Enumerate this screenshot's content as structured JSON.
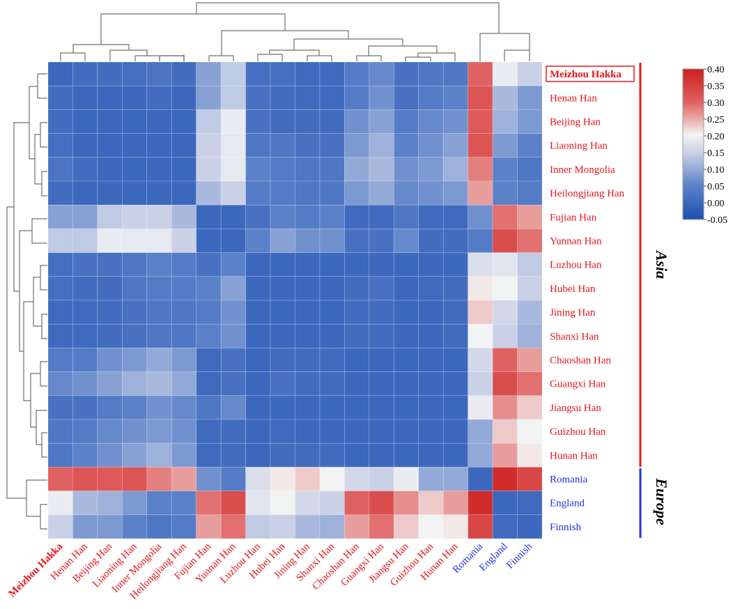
{
  "chart_data": {
    "type": "heatmap",
    "title": "",
    "colors": {
      "asia": "#e8161c",
      "europe": "#2233dd",
      "low": "#1d4fb1",
      "mid": "#f4f4f4",
      "high": "#cc1f1f"
    },
    "row_labels": [
      "Meizhou Hakka",
      "Henan Han",
      "Beijing Han",
      "Liaoning Han",
      "Inner Mongolia",
      "Heilongjiang Han",
      "Fujian Han",
      "Yunnan Han",
      "Luzhou Han",
      "Hubei Han",
      "Jining Han",
      "Shanxi Han",
      "Chaoshan Han",
      "Guangxi Han",
      "Jiangsu Han",
      "Guizhou Han",
      "Hunan Han",
      "Romania",
      "England",
      "Finnish"
    ],
    "col_labels": [
      "Meizhou Hakka",
      "Henan Han",
      "Beijing Han",
      "Liaoning Han",
      "Inner Mongolia",
      "Heilongjiang Han",
      "Fujian Han",
      "Yunnan Han",
      "Luzhou Han",
      "Hubei Han",
      "Jining Han",
      "Shanxi Han",
      "Chaoshan Han",
      "Guangxi Han",
      "Jiangsu Han",
      "Guizhou Han",
      "Hunan Han",
      "Romania",
      "England",
      "Finnish"
    ],
    "label_groups": [
      "Asia",
      "Asia",
      "Asia",
      "Asia",
      "Asia",
      "Asia",
      "Asia",
      "Asia",
      "Asia",
      "Asia",
      "Asia",
      "Asia",
      "Asia",
      "Asia",
      "Asia",
      "Asia",
      "Asia",
      "Europe",
      "Europe",
      "Europe"
    ],
    "highlight_label": "Meizhou Hakka",
    "groups": [
      {
        "name": "Asia",
        "start": 0,
        "end": 16
      },
      {
        "name": "Europe",
        "start": 17,
        "end": 19
      }
    ],
    "colorbar": {
      "min": -0.05,
      "max": 0.4,
      "ticks": [
        "0.40",
        "0.35",
        "0.30",
        "0.25",
        "0.20",
        "0.15",
        "0.10",
        "0.05",
        "0.00",
        "-0.05"
      ]
    },
    "values": [
      [
        0.0,
        0.01,
        0.01,
        0.015,
        0.025,
        0.01,
        0.09,
        0.14,
        0.015,
        0.015,
        0.005,
        0.005,
        0.04,
        0.06,
        0.02,
        0.03,
        0.03,
        0.3,
        0.19,
        0.15
      ],
      [
        0.01,
        0.0,
        0.0,
        0.0,
        0.01,
        0.0,
        0.09,
        0.14,
        0.02,
        0.01,
        0.005,
        0.005,
        0.04,
        0.07,
        0.02,
        0.04,
        0.05,
        0.32,
        0.12,
        0.08
      ],
      [
        0.01,
        0.0,
        0.0,
        0.0,
        0.0,
        0.0,
        0.14,
        0.19,
        0.02,
        0.01,
        0.01,
        0.01,
        0.07,
        0.09,
        0.04,
        0.06,
        0.07,
        0.31,
        0.11,
        0.08
      ],
      [
        0.015,
        0.0,
        0.0,
        0.0,
        0.0,
        0.0,
        0.15,
        0.185,
        0.03,
        0.03,
        0.02,
        0.02,
        0.08,
        0.11,
        0.05,
        0.07,
        0.09,
        0.32,
        0.08,
        0.05
      ],
      [
        0.025,
        0.01,
        0.0,
        0.0,
        0.0,
        0.0,
        0.15,
        0.185,
        0.05,
        0.04,
        0.03,
        0.03,
        0.1,
        0.12,
        0.07,
        0.08,
        0.11,
        0.28,
        0.05,
        0.03
      ],
      [
        0.01,
        0.0,
        0.0,
        0.0,
        0.0,
        0.0,
        0.12,
        0.15,
        0.04,
        0.04,
        0.03,
        0.03,
        0.08,
        0.1,
        0.06,
        0.07,
        0.08,
        0.26,
        0.05,
        0.04
      ],
      [
        0.09,
        0.09,
        0.14,
        0.15,
        0.15,
        0.12,
        0.0,
        0.0,
        0.02,
        0.05,
        0.04,
        0.05,
        0.005,
        0.005,
        0.03,
        0.005,
        0.005,
        0.07,
        0.29,
        0.26
      ],
      [
        0.14,
        0.14,
        0.19,
        0.185,
        0.185,
        0.15,
        0.0,
        0.0,
        0.05,
        0.09,
        0.07,
        0.07,
        0.02,
        0.02,
        0.06,
        0.01,
        0.01,
        0.04,
        0.33,
        0.29
      ],
      [
        0.015,
        0.02,
        0.02,
        0.03,
        0.05,
        0.04,
        0.02,
        0.05,
        0.0,
        0.0,
        0.0,
        0.0,
        0.0,
        0.0,
        0.0,
        0.0,
        0.0,
        0.17,
        0.18,
        0.14
      ],
      [
        0.015,
        0.01,
        0.01,
        0.03,
        0.04,
        0.04,
        0.05,
        0.09,
        0.0,
        0.0,
        0.0,
        0.0,
        0.01,
        0.02,
        0.0,
        0.005,
        0.01,
        0.21,
        0.2,
        0.15
      ],
      [
        0.005,
        0.005,
        0.01,
        0.02,
        0.03,
        0.03,
        0.04,
        0.07,
        0.0,
        0.0,
        0.0,
        0.0,
        0.01,
        0.01,
        0.0,
        0.0,
        0.01,
        0.23,
        0.16,
        0.12
      ],
      [
        0.005,
        0.005,
        0.01,
        0.02,
        0.03,
        0.03,
        0.05,
        0.07,
        0.0,
        0.0,
        0.0,
        0.0,
        0.01,
        0.01,
        0.0,
        0.0,
        0.01,
        0.2,
        0.15,
        0.11
      ],
      [
        0.04,
        0.04,
        0.07,
        0.08,
        0.1,
        0.08,
        0.005,
        0.02,
        0.0,
        0.01,
        0.01,
        0.01,
        0.0,
        0.0,
        0.0,
        0.0,
        0.0,
        0.16,
        0.3,
        0.26
      ],
      [
        0.06,
        0.07,
        0.09,
        0.11,
        0.12,
        0.1,
        0.005,
        0.02,
        0.0,
        0.02,
        0.01,
        0.01,
        0.0,
        0.0,
        0.0,
        0.0,
        0.0,
        0.15,
        0.33,
        0.29
      ],
      [
        0.02,
        0.02,
        0.04,
        0.05,
        0.07,
        0.06,
        0.03,
        0.06,
        0.0,
        0.0,
        0.0,
        0.0,
        0.0,
        0.0,
        0.0,
        0.0,
        0.0,
        0.19,
        0.27,
        0.23
      ],
      [
        0.03,
        0.04,
        0.06,
        0.07,
        0.08,
        0.07,
        0.005,
        0.01,
        0.0,
        0.005,
        0.0,
        0.0,
        0.0,
        0.0,
        0.0,
        0.0,
        0.0,
        0.1,
        0.23,
        0.2
      ],
      [
        0.03,
        0.05,
        0.07,
        0.09,
        0.11,
        0.08,
        0.005,
        0.01,
        0.0,
        0.01,
        0.01,
        0.01,
        0.0,
        0.0,
        0.0,
        0.0,
        0.0,
        0.1,
        0.26,
        0.21
      ],
      [
        0.3,
        0.32,
        0.31,
        0.32,
        0.28,
        0.26,
        0.07,
        0.04,
        0.17,
        0.21,
        0.23,
        0.2,
        0.16,
        0.15,
        0.19,
        0.1,
        0.1,
        0.0,
        0.38,
        0.34
      ],
      [
        0.19,
        0.12,
        0.11,
        0.08,
        0.05,
        0.05,
        0.29,
        0.33,
        0.18,
        0.2,
        0.16,
        0.15,
        0.3,
        0.33,
        0.27,
        0.23,
        0.26,
        0.38,
        0.0,
        0.005
      ],
      [
        0.15,
        0.08,
        0.08,
        0.05,
        0.03,
        0.04,
        0.26,
        0.29,
        0.14,
        0.15,
        0.12,
        0.11,
        0.26,
        0.29,
        0.23,
        0.2,
        0.21,
        0.34,
        0.005,
        0.0
      ]
    ]
  }
}
